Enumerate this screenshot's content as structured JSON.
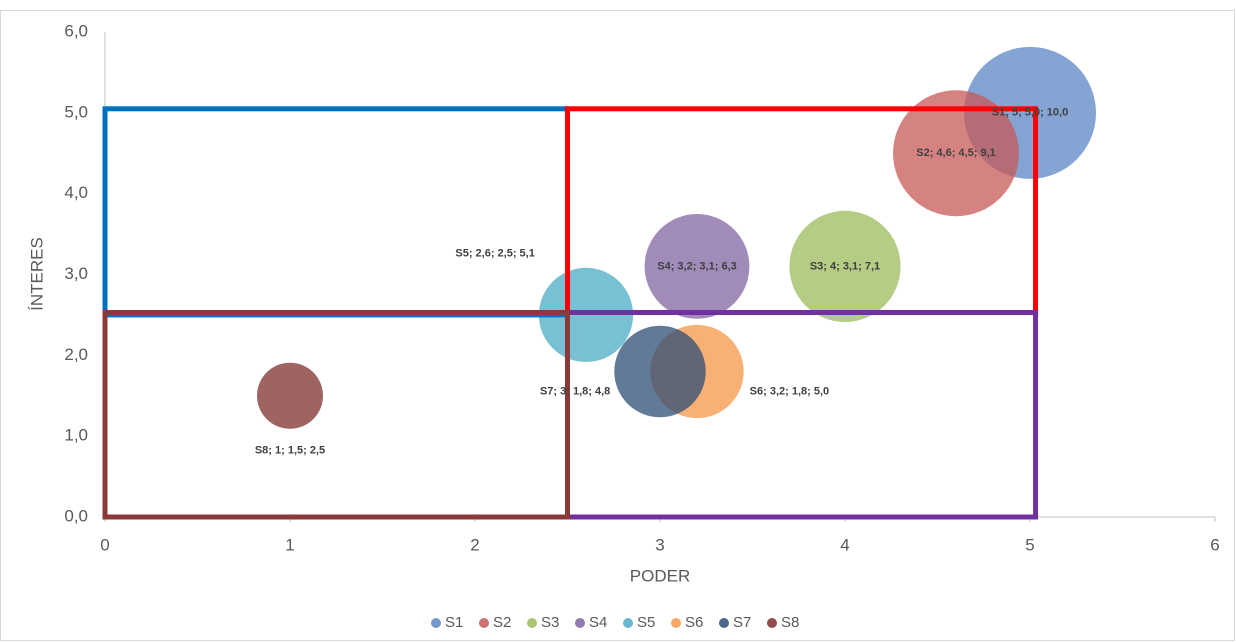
{
  "chart_data": {
    "type": "bubble",
    "xlabel": "PODER",
    "ylabel": "ÍNTERES",
    "xlim": [
      0,
      6
    ],
    "xticks": [
      0,
      1,
      2,
      3,
      4,
      5,
      6
    ],
    "ylim": [
      0,
      6
    ],
    "yticks": [
      {
        "value": 0,
        "label": "0,0"
      },
      {
        "value": 1,
        "label": "1,0"
      },
      {
        "value": 2,
        "label": "2,0"
      },
      {
        "value": 3,
        "label": "3,0"
      },
      {
        "value": 4,
        "label": "4,0"
      },
      {
        "value": 5,
        "label": "5,0"
      },
      {
        "value": 6,
        "label": "6,0"
      }
    ],
    "grid": false,
    "legend": "bottom",
    "series": [
      {
        "name": "S1",
        "color": "#5b87c5",
        "x": [
          5
        ],
        "values": [
          5.0
        ],
        "sizes": [
          10.0
        ],
        "value_labels": [
          "S1; 5; 5,0; 10,0"
        ],
        "label_position": "center"
      },
      {
        "name": "S2",
        "color": "#c55a57",
        "x": [
          4.6
        ],
        "values": [
          4.5
        ],
        "sizes": [
          9.1
        ],
        "value_labels": [
          "S2; 4,6; 4,5; 9,1"
        ],
        "label_position": "center"
      },
      {
        "name": "S3",
        "color": "#9bbb59",
        "x": [
          4
        ],
        "values": [
          3.1
        ],
        "sizes": [
          7.1
        ],
        "value_labels": [
          "S3; 4; 3,1; 7,1"
        ],
        "label_position": "center"
      },
      {
        "name": "S4",
        "color": "#8064a2",
        "x": [
          3.2
        ],
        "values": [
          3.1
        ],
        "sizes": [
          6.3
        ],
        "value_labels": [
          "S4; 3,2; 3,1; 6,3"
        ],
        "label_position": "center"
      },
      {
        "name": "S5",
        "color": "#4bacc6",
        "x": [
          2.6
        ],
        "values": [
          2.5
        ],
        "sizes": [
          5.1
        ],
        "value_labels": [
          "S5; 2,6; 2,5; 5,1"
        ],
        "label_position": "upper-left"
      },
      {
        "name": "S6",
        "color": "#f79646",
        "x": [
          3.2
        ],
        "values": [
          1.8
        ],
        "sizes": [
          5.0
        ],
        "value_labels": [
          "S6; 3,2; 1,8; 5,0"
        ],
        "label_position": "right"
      },
      {
        "name": "S7",
        "color": "#2c4d75",
        "x": [
          3
        ],
        "values": [
          1.8
        ],
        "sizes": [
          4.8
        ],
        "value_labels": [
          "S7; 3; 1,8; 4,8"
        ],
        "label_position": "left"
      },
      {
        "name": "S8",
        "color": "#7f2f2d",
        "x": [
          1
        ],
        "values": [
          1.5
        ],
        "sizes": [
          2.5
        ],
        "value_labels": [
          "S8; 1; 1,5; 2,5"
        ],
        "label_position": "below"
      }
    ],
    "regions": [
      {
        "x": [
          0,
          2.5
        ],
        "y": [
          2.5,
          5.05
        ],
        "color": "#0070c0"
      },
      {
        "x": [
          2.5,
          5.03
        ],
        "y": [
          2.53,
          5.05
        ],
        "color": "#ff0000"
      },
      {
        "x": [
          2.5,
          5.03
        ],
        "y": [
          0,
          2.53
        ],
        "color": "#7030a0"
      },
      {
        "x": [
          0,
          2.5
        ],
        "y": [
          0,
          2.53
        ],
        "color": "#8b3a38"
      }
    ]
  }
}
